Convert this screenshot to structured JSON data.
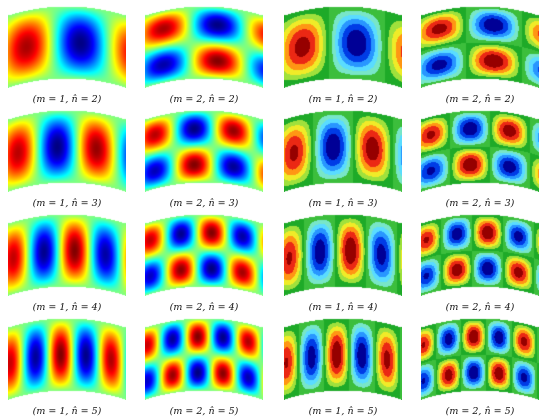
{
  "panels": [
    {
      "label": "(m = 1, n̂ = 2)",
      "m": 1,
      "n": 2,
      "scheme": "jet"
    },
    {
      "label": "(m = 2, n̂ = 2)",
      "m": 2,
      "n": 2,
      "scheme": "jet"
    },
    {
      "label": "(m = 1, n̂ = 2)",
      "m": 1,
      "n": 2,
      "scheme": "contour"
    },
    {
      "label": "(m = 2, n̂ = 2)",
      "m": 2,
      "n": 2,
      "scheme": "contour"
    },
    {
      "label": "(m = 1, n̂ = 3)",
      "m": 1,
      "n": 3,
      "scheme": "jet"
    },
    {
      "label": "(m = 2, n̂ = 3)",
      "m": 2,
      "n": 3,
      "scheme": "jet"
    },
    {
      "label": "(m = 1, n̂ = 3)",
      "m": 1,
      "n": 3,
      "scheme": "contour"
    },
    {
      "label": "(m = 2, n̂ = 3)",
      "m": 2,
      "n": 3,
      "scheme": "contour"
    },
    {
      "label": "(m = 1, n̂ = 4)",
      "m": 1,
      "n": 4,
      "scheme": "jet"
    },
    {
      "label": "(m = 2, n̂ = 4)",
      "m": 2,
      "n": 4,
      "scheme": "jet"
    },
    {
      "label": "(m = 1, n̂ = 4)",
      "m": 1,
      "n": 4,
      "scheme": "contour"
    },
    {
      "label": "(m = 2, n̂ = 4)",
      "m": 2,
      "n": 4,
      "scheme": "contour"
    },
    {
      "label": "(m = 1, n̂ = 5)",
      "m": 1,
      "n": 5,
      "scheme": "jet"
    },
    {
      "label": "(m = 2, n̂ = 5)",
      "m": 2,
      "n": 5,
      "scheme": "jet"
    },
    {
      "label": "(m = 1, n̂ = 5)",
      "m": 1,
      "n": 5,
      "scheme": "contour"
    },
    {
      "label": "(m = 2, n̂ = 5)",
      "m": 2,
      "n": 5,
      "scheme": "contour"
    }
  ]
}
